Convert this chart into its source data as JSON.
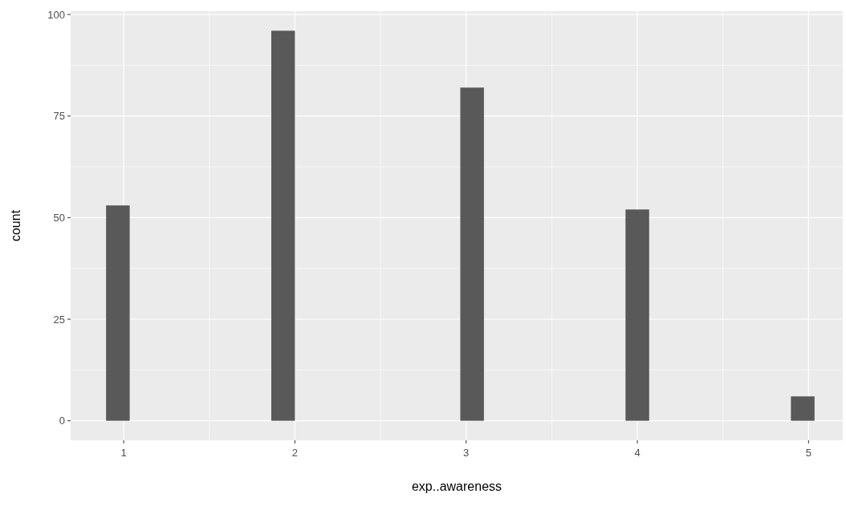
{
  "chart_data": {
    "type": "histogram",
    "xlabel": "exp..awareness",
    "ylabel": "count",
    "bins": [
      0.897,
      1.035,
      1.173,
      1.311,
      1.449,
      1.587,
      1.724,
      1.862,
      2.0,
      2.138,
      2.276,
      2.414,
      2.552,
      2.69,
      2.828,
      2.966,
      3.104,
      3.242,
      3.379,
      3.517,
      3.655,
      3.793,
      3.931,
      4.069,
      4.207,
      4.345,
      4.483,
      4.621,
      4.759,
      4.897,
      5.035
    ],
    "values": [
      53,
      0,
      0,
      0,
      0,
      0,
      0,
      96,
      0,
      0,
      0,
      0,
      0,
      0,
      0,
      82,
      0,
      0,
      0,
      0,
      0,
      0,
      52,
      0,
      0,
      0,
      0,
      0,
      0,
      6
    ],
    "color": "#595959",
    "xlim": [
      0.69,
      5.2
    ],
    "xticks": [
      1,
      2,
      3,
      4,
      5
    ],
    "ylim": [
      -4.8,
      100.8
    ],
    "yticks": [
      0,
      25,
      50,
      75,
      100
    ],
    "grid": true
  }
}
